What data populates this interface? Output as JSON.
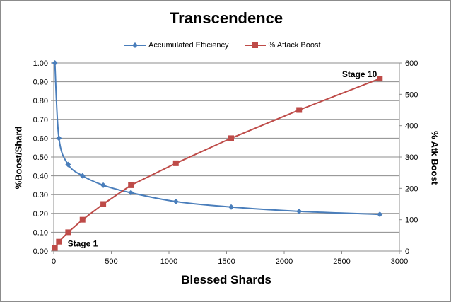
{
  "chart_data": {
    "type": "line",
    "title": "Transcendence",
    "xlabel": "Blessed Shards",
    "ylabel_left": "%Boost/Shard",
    "ylabel_right": "% Atk Boost",
    "xlim": [
      0,
      3000
    ],
    "ylim_left": [
      0,
      1.0
    ],
    "ylim_right": [
      0,
      600
    ],
    "x_ticks": [
      "0",
      "500",
      "1000",
      "1500",
      "2000",
      "2500",
      "3000"
    ],
    "y_left_ticks": [
      "0.00",
      "0.10",
      "0.20",
      "0.30",
      "0.40",
      "0.50",
      "0.60",
      "0.70",
      "0.80",
      "0.90",
      "1.00"
    ],
    "y_right_ticks": [
      "0",
      "100",
      "200",
      "300",
      "400",
      "500",
      "600"
    ],
    "grid": "horizontal",
    "legend_position": "top",
    "series": [
      {
        "name": "Accumulated Efficiency",
        "axis": "left",
        "color": "#4a7ebb",
        "marker": "diamond",
        "x": [
          10,
          45,
          125,
          250,
          430,
          670,
          1060,
          1540,
          2130,
          2830
        ],
        "y": [
          1.0,
          0.6,
          0.46,
          0.4,
          0.35,
          0.31,
          0.263,
          0.234,
          0.211,
          0.195
        ]
      },
      {
        "name": "% Attack Boost",
        "axis": "right",
        "color": "#be4b48",
        "marker": "square",
        "x": [
          10,
          45,
          125,
          250,
          430,
          670,
          1060,
          1540,
          2130,
          2830
        ],
        "y": [
          10,
          30,
          60,
          100,
          150,
          210,
          280,
          360,
          450,
          550
        ]
      }
    ],
    "annotations": [
      {
        "text": "Stage 1",
        "series": 1,
        "point": 0
      },
      {
        "text": "Stage 10",
        "series": 1,
        "point": 9
      }
    ]
  }
}
